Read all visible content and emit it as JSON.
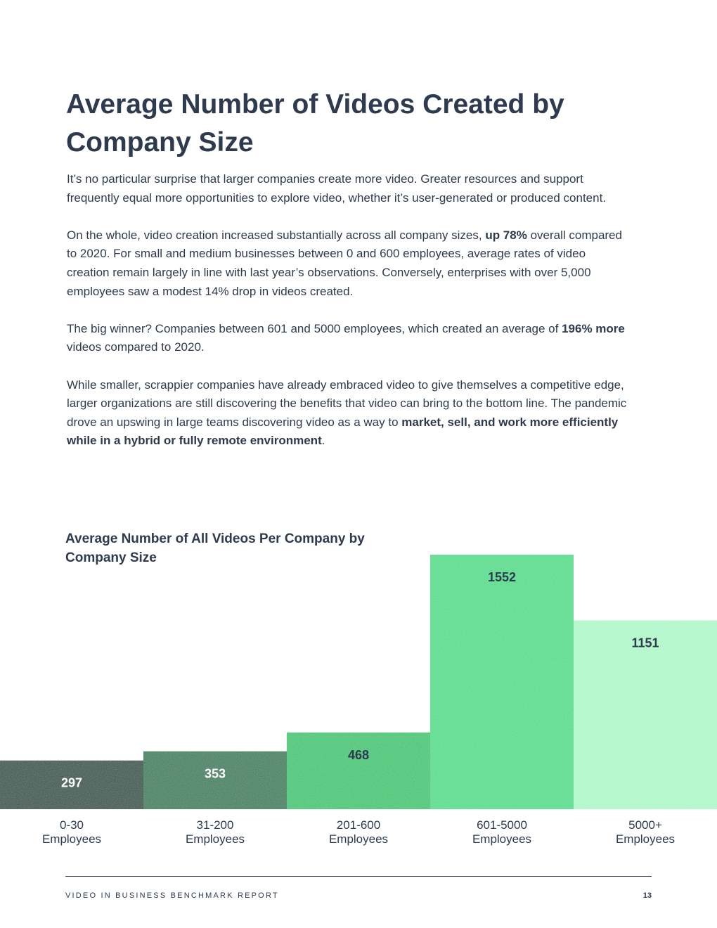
{
  "page": {
    "heading": "Average Number of Videos Created by Company Size",
    "paragraphs": [
      [
        {
          "t": "It’s no particular surprise that larger companies create more video. Greater resources and support frequently equal more opportunities to explore video, whether it’s user-generated or produced content."
        }
      ],
      [
        {
          "t": "On the whole, video creation increased substantially across all company sizes, "
        },
        {
          "t": "up 78%",
          "b": true
        },
        {
          "t": " overall compared to 2020. For small and medium businesses between 0 and 600 employees, average rates of video creation remain largely in line with last year’s observations. Conversely, enterprises with over 5,000 employees saw a modest 14% drop in videos created."
        }
      ],
      [
        {
          "t": "The big winner? Companies between 601 and 5000 employees, which created an average of "
        },
        {
          "t": "196% more",
          "b": true
        },
        {
          "t": " videos compared to 2020."
        }
      ],
      [
        {
          "t": "While smaller, scrappier companies have already embraced video to give themselves a competitive edge, larger organizations are still discovering the benefits that video can bring to the bottom line. The pandemic drove an upswing in large teams discovering video as a way to "
        },
        {
          "t": "market, sell, and work more efficiently while in a hybrid or fully remote environment",
          "b": true
        },
        {
          "t": "."
        }
      ]
    ]
  },
  "chart_data": {
    "type": "bar",
    "title": "Average Number of All Videos Per Company by Company Size",
    "categories": [
      "0-30 Employees",
      "31-200 Employees",
      "201-600 Employees",
      "601-5000 Employees",
      "5000+ Employees"
    ],
    "category_lines": [
      [
        "0-30",
        "Employees"
      ],
      [
        "31-200",
        "Employees"
      ],
      [
        "201-600",
        "Employees"
      ],
      [
        "601-5000",
        "Employees"
      ],
      [
        "5000+",
        "Employees"
      ]
    ],
    "values": [
      297,
      353,
      468,
      1552,
      1151
    ],
    "data_labels": [
      "297",
      "353",
      "468",
      "1552",
      "1151"
    ],
    "colors": [
      "#1f4a3a",
      "#2a7a55",
      "#2ec56e",
      "#48dc88",
      "#aef8c8"
    ],
    "label_colors": [
      "#ffffff",
      "#ffffff",
      "#2e3a4e",
      "#2e3a4e",
      "#2e3a4e"
    ],
    "ylim": [
      0,
      1552
    ],
    "grid": false,
    "legend": "none"
  },
  "footer": {
    "report_title": "VIDEO IN BUSINESS BENCHMARK REPORT",
    "page_number": "13"
  }
}
